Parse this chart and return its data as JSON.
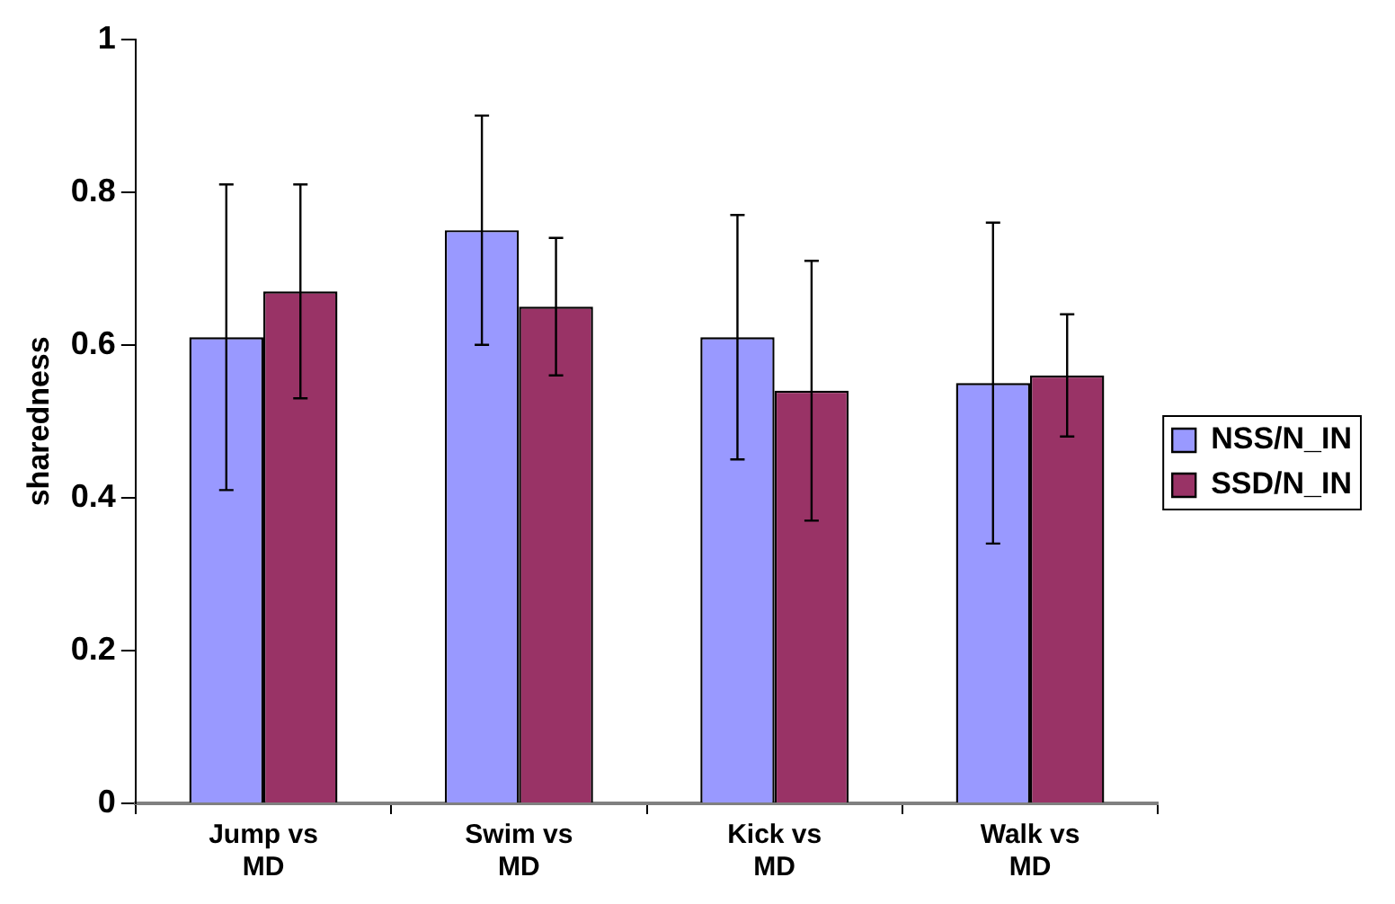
{
  "chart_data": {
    "type": "bar",
    "ylabel": "sharedness",
    "categories": [
      "Jump vs MD",
      "Swim vs MD",
      "Kick vs MD",
      "Walk vs MD"
    ],
    "series": [
      {
        "name": "NSS/N_IN",
        "color": "#9999ff",
        "values": [
          0.61,
          0.75,
          0.61,
          0.55
        ],
        "errors": [
          0.2,
          0.15,
          0.16,
          0.21
        ]
      },
      {
        "name": "SSD/N_IN",
        "color": "#993366",
        "values": [
          0.67,
          0.65,
          0.54,
          0.56
        ],
        "errors": [
          0.14,
          0.09,
          0.17,
          0.08
        ]
      }
    ],
    "ylim": [
      0,
      1
    ],
    "yticks": [
      0,
      0.2,
      0.4,
      0.6,
      0.8,
      1
    ],
    "legend": "right",
    "grid": false
  }
}
